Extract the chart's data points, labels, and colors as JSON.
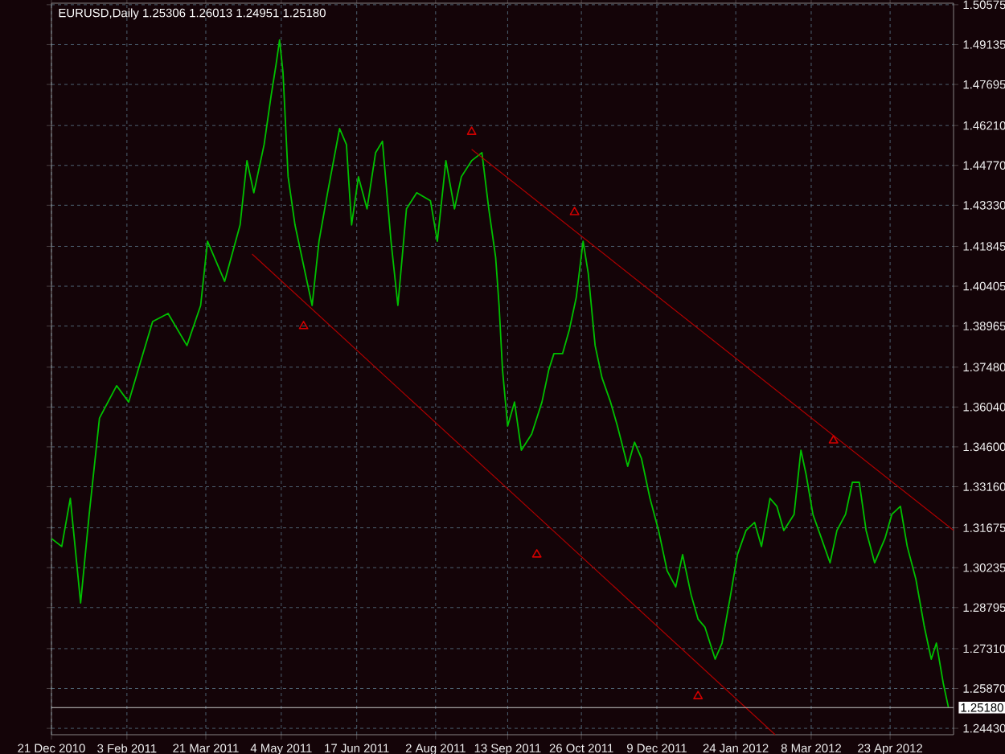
{
  "chart_data": {
    "type": "line",
    "title": "EURUSD,Daily  1.25306 1.26013 1.24951 1.25180",
    "xlim": [
      "2010-12-21",
      "2012-05-30"
    ],
    "ylim": [
      1.242,
      1.5063
    ],
    "xticks": [
      {
        "value": "2010-12-21",
        "label": "21 Dec 2010"
      },
      {
        "value": "2011-02-03",
        "label": "3 Feb 2011"
      },
      {
        "value": "2011-03-21",
        "label": "21 Mar 2011"
      },
      {
        "value": "2011-05-04",
        "label": "4 May 2011"
      },
      {
        "value": "2011-06-17",
        "label": "17 Jun 2011"
      },
      {
        "value": "2011-08-02",
        "label": "2 Aug 2011"
      },
      {
        "value": "2011-09-13",
        "label": "13 Sep 2011"
      },
      {
        "value": "2011-10-26",
        "label": "26 Oct 2011"
      },
      {
        "value": "2011-12-09",
        "label": "9 Dec 2011"
      },
      {
        "value": "2012-01-24",
        "label": "24 Jan 2012"
      },
      {
        "value": "2012-03-08",
        "label": "8 Mar 2012"
      },
      {
        "value": "2012-04-23",
        "label": "23 Apr 2012"
      }
    ],
    "yticks": [
      {
        "value": 1.50575,
        "label": "1.50575"
      },
      {
        "value": 1.49135,
        "label": "1.49135"
      },
      {
        "value": 1.47695,
        "label": "1.47695"
      },
      {
        "value": 1.4621,
        "label": "1.46210"
      },
      {
        "value": 1.4477,
        "label": "1.44770"
      },
      {
        "value": 1.4333,
        "label": "1.43330"
      },
      {
        "value": 1.41845,
        "label": "1.41845"
      },
      {
        "value": 1.40405,
        "label": "1.40405"
      },
      {
        "value": 1.38965,
        "label": "1.38965"
      },
      {
        "value": 1.3748,
        "label": "1.37480"
      },
      {
        "value": 1.3604,
        "label": "1.36040"
      },
      {
        "value": 1.346,
        "label": "1.34600"
      },
      {
        "value": 1.3316,
        "label": "1.33160"
      },
      {
        "value": 1.31675,
        "label": "1.31675"
      },
      {
        "value": 1.30235,
        "label": "1.30235"
      },
      {
        "value": 1.28795,
        "label": "1.28795"
      },
      {
        "value": 1.2731,
        "label": "1.27310"
      },
      {
        "value": 1.2587,
        "label": "1.25870"
      },
      {
        "value": 1.2443,
        "label": "1.24430"
      }
    ],
    "grid": true,
    "marker": "none",
    "line_style": "solid",
    "ref_lines": [
      {
        "axis": "y",
        "value": 1.2518,
        "label": "1.25180",
        "color": "#c8c8c8"
      }
    ],
    "series": [
      {
        "color": "#00c000",
        "x": [
          "2010-12-21",
          "2010-12-27",
          "2011-01-01",
          "2011-01-07",
          "2011-01-12",
          "2011-01-18",
          "2011-01-28",
          "2011-02-04",
          "2011-02-11",
          "2011-02-18",
          "2011-02-27",
          "2011-03-10",
          "2011-03-18",
          "2011-03-22",
          "2011-04-01",
          "2011-04-10",
          "2011-04-14",
          "2011-04-18",
          "2011-04-24",
          "2011-04-28",
          "2011-05-01",
          "2011-05-03",
          "2011-05-05",
          "2011-05-08",
          "2011-05-12",
          "2011-05-18",
          "2011-05-22",
          "2011-05-26",
          "2011-05-31",
          "2011-06-07",
          "2011-06-11",
          "2011-06-14",
          "2011-06-18",
          "2011-06-23",
          "2011-06-28",
          "2011-07-02",
          "2011-07-07",
          "2011-07-11",
          "2011-07-16",
          "2011-07-22",
          "2011-07-30",
          "2011-08-03",
          "2011-08-08",
          "2011-08-13",
          "2011-08-17",
          "2011-08-23",
          "2011-08-29",
          "2011-09-02",
          "2011-09-06",
          "2011-09-08",
          "2011-09-10",
          "2011-09-13",
          "2011-09-17",
          "2011-09-21",
          "2011-09-27",
          "2011-10-03",
          "2011-10-07",
          "2011-10-10",
          "2011-10-15",
          "2011-10-19",
          "2011-10-23",
          "2011-10-27",
          "2011-10-30",
          "2011-11-03",
          "2011-11-07",
          "2011-11-12",
          "2011-11-16",
          "2011-11-22",
          "2011-11-26",
          "2011-11-30",
          "2011-12-05",
          "2011-12-10",
          "2011-12-15",
          "2011-12-20",
          "2011-12-24",
          "2011-12-29",
          "2012-01-02",
          "2012-01-06",
          "2012-01-12",
          "2012-01-16",
          "2012-01-21",
          "2012-01-25",
          "2012-01-30",
          "2012-02-04",
          "2012-02-08",
          "2012-02-13",
          "2012-02-17",
          "2012-02-21",
          "2012-02-27",
          "2012-03-02",
          "2012-03-05",
          "2012-03-09",
          "2012-03-14",
          "2012-03-19",
          "2012-03-23",
          "2012-03-28",
          "2012-04-01",
          "2012-04-05",
          "2012-04-09",
          "2012-04-14",
          "2012-04-20",
          "2012-04-24",
          "2012-04-29",
          "2012-05-03",
          "2012-05-08",
          "2012-05-13",
          "2012-05-17",
          "2012-05-20",
          "2012-05-24",
          "2012-05-27"
        ],
        "values": [
          1.3129,
          1.31,
          1.3274,
          1.2896,
          1.3216,
          1.3564,
          1.3681,
          1.3622,
          1.3768,
          1.3913,
          1.3942,
          1.3826,
          1.3971,
          1.4203,
          1.4058,
          1.4262,
          1.4494,
          1.4378,
          1.4552,
          1.4726,
          1.4843,
          1.493,
          1.4814,
          1.4436,
          1.4262,
          1.4087,
          1.3971,
          1.4203,
          1.4378,
          1.461,
          1.4552,
          1.4262,
          1.4436,
          1.432,
          1.4523,
          1.4564,
          1.4203,
          1.3971,
          1.432,
          1.4378,
          1.4349,
          1.4203,
          1.4494,
          1.432,
          1.4436,
          1.4494,
          1.4523,
          1.432,
          1.4145,
          1.3971,
          1.3739,
          1.3535,
          1.3622,
          1.3448,
          1.3506,
          1.3622,
          1.3739,
          1.3797,
          1.3797,
          1.3884,
          1.4,
          1.4203,
          1.4087,
          1.3826,
          1.371,
          1.3622,
          1.3535,
          1.339,
          1.3477,
          1.3419,
          1.3274,
          1.3158,
          1.3012,
          1.2954,
          1.3071,
          1.2925,
          1.2838,
          1.2809,
          1.2693,
          1.2751,
          1.2925,
          1.3071,
          1.3158,
          1.3187,
          1.31,
          1.3274,
          1.3245,
          1.3158,
          1.3216,
          1.3448,
          1.3361,
          1.3216,
          1.3129,
          1.3041,
          1.3158,
          1.3216,
          1.3332,
          1.3332,
          1.3158,
          1.3041,
          1.3129,
          1.3216,
          1.3245,
          1.31,
          1.2983,
          1.2809,
          1.2693,
          1.2751,
          1.2606,
          1.2519
        ]
      },
      {
        "type": "line",
        "color": "#b00000",
        "x": [
          "2011-08-23",
          "2012-05-30"
        ],
        "values": [
          1.4535,
          1.3158
        ]
      },
      {
        "type": "line",
        "color": "#b00000",
        "x": [
          "2011-04-17",
          "2012-02-16"
        ],
        "values": [
          1.4157,
          1.242
        ]
      },
      {
        "type": "scatter",
        "color": "#d00000",
        "marker": "triangle",
        "x": [
          "2011-08-23",
          "2011-10-22",
          "2012-03-21",
          "2011-05-17",
          "2011-09-30",
          "2012-01-02"
        ],
        "values": [
          1.4598,
          1.4308,
          1.3483,
          1.3896,
          1.3071,
          1.2559
        ]
      }
    ]
  }
}
